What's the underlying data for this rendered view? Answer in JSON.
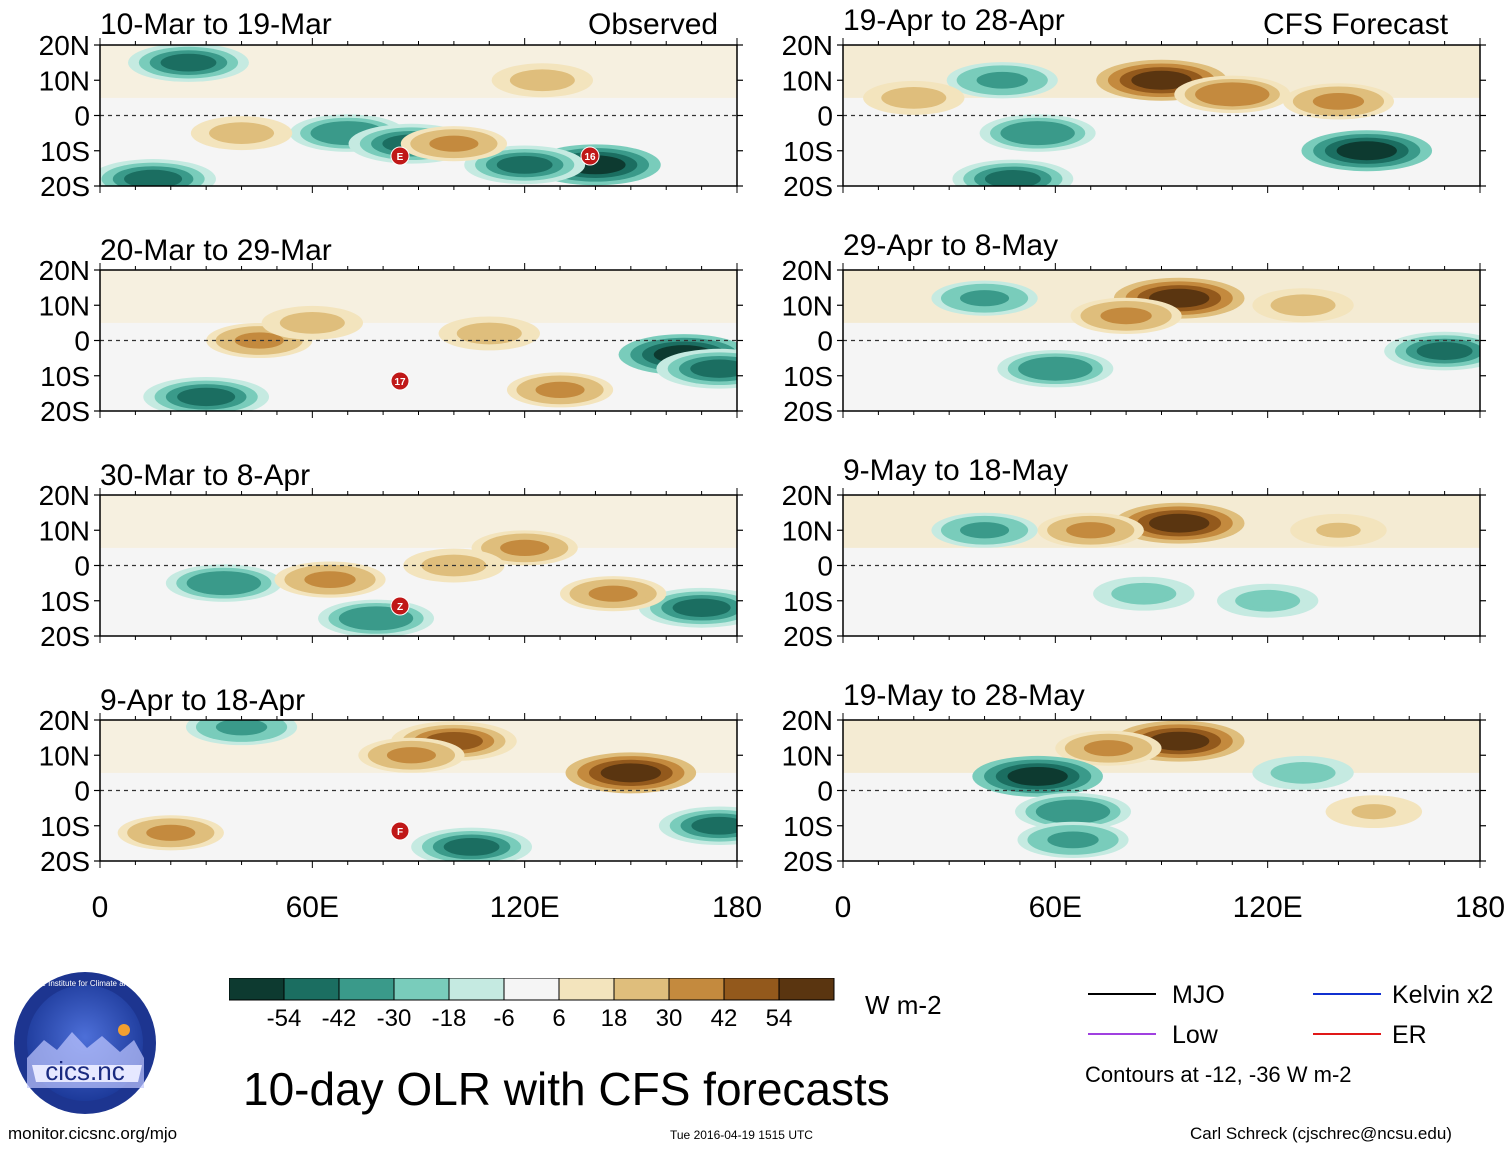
{
  "figure": {
    "title": "10-day OLR with CFS forecasts",
    "website": "monitor.cicsnc.org/mjo",
    "timestamp": "Tue 2016-04-19 1515 UTC",
    "author": "Carl Schreck (cjschrec@ncsu.edu)",
    "logo_text": "cics.nc",
    "logo_ring_text": "Cooperative Institute for Climate and Satellites"
  },
  "column_labels": {
    "left": "Observed",
    "right": "CFS Forecast"
  },
  "colors": {
    "MJO": "#000000",
    "Low": "#a040e0",
    "Kelvin": "#1030d0",
    "ER": "#e01818",
    "scale": [
      "#0d3a30",
      "#1b6e61",
      "#3a9a8a",
      "#79ccbb",
      "#c5eae1",
      "#f5f5f5",
      "#f3e4bd",
      "#dfbe7c",
      "#c48a3e",
      "#93591c",
      "#5a3510"
    ]
  },
  "chart_data": {
    "type": "heatmap",
    "variable": "OLR anomaly",
    "units": "W m-2",
    "colorbar_ticks": [
      "-54",
      "-42",
      "-30",
      "-18",
      "-6",
      "6",
      "18",
      "30",
      "42",
      "54"
    ],
    "x_axis": {
      "ticks": [
        "0",
        "60E",
        "120E",
        "180"
      ],
      "xlim": [
        0,
        180
      ]
    },
    "y_axis": {
      "ticks": [
        "20N",
        "10N",
        "0",
        "10S",
        "20S"
      ],
      "ylim": [
        -20,
        20
      ]
    },
    "panels": [
      {
        "period": "10-Mar to 19-Mar",
        "source": "Observed",
        "storms": [
          "E",
          "16"
        ],
        "blobs": [
          {
            "lon": 25,
            "lat": 15,
            "v": -40
          },
          {
            "lon": 15,
            "lat": -18,
            "v": -45
          },
          {
            "lon": 70,
            "lat": -5,
            "v": -35
          },
          {
            "lon": 88,
            "lat": -8,
            "v": -45
          },
          {
            "lon": 140,
            "lat": -14,
            "v": -50
          },
          {
            "lon": 120,
            "lat": -14,
            "v": -40
          },
          {
            "lon": 100,
            "lat": -8,
            "v": 25
          },
          {
            "lon": 125,
            "lat": 10,
            "v": 20
          },
          {
            "lon": 40,
            "lat": -5,
            "v": 20
          }
        ]
      },
      {
        "period": "20-Mar to 29-Mar",
        "source": "Observed",
        "storms": [
          "17"
        ],
        "blobs": [
          {
            "lon": 165,
            "lat": -4,
            "v": -50
          },
          {
            "lon": 175,
            "lat": -8,
            "v": -45
          },
          {
            "lon": 30,
            "lat": -16,
            "v": -45
          },
          {
            "lon": 45,
            "lat": 0,
            "v": 25
          },
          {
            "lon": 60,
            "lat": 5,
            "v": 20
          },
          {
            "lon": 110,
            "lat": 2,
            "v": 20
          },
          {
            "lon": 130,
            "lat": -14,
            "v": 25
          }
        ]
      },
      {
        "period": "30-Mar to 8-Apr",
        "source": "Observed",
        "storms": [
          "Z"
        ],
        "blobs": [
          {
            "lon": 35,
            "lat": -5,
            "v": -35
          },
          {
            "lon": 78,
            "lat": -15,
            "v": -35
          },
          {
            "lon": 170,
            "lat": -12,
            "v": -45
          },
          {
            "lon": 65,
            "lat": -4,
            "v": 30
          },
          {
            "lon": 120,
            "lat": 5,
            "v": 25
          },
          {
            "lon": 145,
            "lat": -8,
            "v": 25
          },
          {
            "lon": 100,
            "lat": 0,
            "v": 20
          }
        ]
      },
      {
        "period": "9-Apr to 18-Apr",
        "source": "Observed",
        "storms": [
          "F"
        ],
        "blobs": [
          {
            "lon": 150,
            "lat": 5,
            "v": 50
          },
          {
            "lon": 100,
            "lat": 14,
            "v": 45
          },
          {
            "lon": 88,
            "lat": 10,
            "v": 25
          },
          {
            "lon": 40,
            "lat": 18,
            "v": -30
          },
          {
            "lon": 105,
            "lat": -16,
            "v": -40
          },
          {
            "lon": 175,
            "lat": -10,
            "v": -40
          },
          {
            "lon": 20,
            "lat": -12,
            "v": 25
          }
        ]
      },
      {
        "period": "19-Apr to 28-Apr",
        "source": "CFS Forecast",
        "storms": [],
        "blobs": [
          {
            "lon": 90,
            "lat": 10,
            "v": 50
          },
          {
            "lon": 110,
            "lat": 6,
            "v": 35
          },
          {
            "lon": 140,
            "lat": 4,
            "v": 30
          },
          {
            "lon": 148,
            "lat": -10,
            "v": -50
          },
          {
            "lon": 55,
            "lat": -5,
            "v": -35
          },
          {
            "lon": 48,
            "lat": -18,
            "v": -40
          },
          {
            "lon": 45,
            "lat": 10,
            "v": -30
          },
          {
            "lon": 20,
            "lat": 5,
            "v": 20
          }
        ]
      },
      {
        "period": "29-Apr to 8-May",
        "source": "CFS Forecast",
        "storms": [],
        "blobs": [
          {
            "lon": 95,
            "lat": 12,
            "v": 50
          },
          {
            "lon": 80,
            "lat": 7,
            "v": 30
          },
          {
            "lon": 130,
            "lat": 10,
            "v": 20
          },
          {
            "lon": 60,
            "lat": -8,
            "v": -35
          },
          {
            "lon": 170,
            "lat": -3,
            "v": -40
          },
          {
            "lon": 40,
            "lat": 12,
            "v": -25
          }
        ]
      },
      {
        "period": "9-May to 18-May",
        "source": "CFS Forecast",
        "storms": [],
        "blobs": [
          {
            "lon": 95,
            "lat": 12,
            "v": 50
          },
          {
            "lon": 70,
            "lat": 10,
            "v": 25
          },
          {
            "lon": 140,
            "lat": 10,
            "v": 15
          },
          {
            "lon": 85,
            "lat": -8,
            "v": -20
          },
          {
            "lon": 120,
            "lat": -10,
            "v": -20
          },
          {
            "lon": 40,
            "lat": 10,
            "v": -25
          }
        ]
      },
      {
        "period": "19-May to 28-May",
        "source": "CFS Forecast",
        "storms": [],
        "blobs": [
          {
            "lon": 95,
            "lat": 14,
            "v": 50
          },
          {
            "lon": 75,
            "lat": 12,
            "v": 25
          },
          {
            "lon": 55,
            "lat": 4,
            "v": -50
          },
          {
            "lon": 65,
            "lat": -6,
            "v": -35
          },
          {
            "lon": 65,
            "lat": -14,
            "v": -30
          },
          {
            "lon": 130,
            "lat": 5,
            "v": -20
          },
          {
            "lon": 150,
            "lat": -6,
            "v": 15
          }
        ]
      }
    ],
    "legend": [
      {
        "key": "MJO",
        "label": "MJO"
      },
      {
        "key": "Kelvin",
        "label": "Kelvin x2"
      },
      {
        "key": "Low",
        "label": "Low"
      },
      {
        "key": "ER",
        "label": "ER"
      }
    ],
    "contour_note": "Contours at -12, -36 W m-2"
  }
}
